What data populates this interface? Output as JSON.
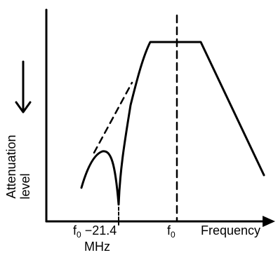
{
  "labels": {
    "y_axis_line1": "Attenuation",
    "y_axis_line2": "level",
    "x_axis": "Frequency",
    "tick_left_main": "f",
    "tick_left_sub": "0",
    "tick_left_suffix": " −21.4",
    "tick_left_unit": "MHz",
    "tick_center_main": "f",
    "tick_center_sub": "0"
  }
}
